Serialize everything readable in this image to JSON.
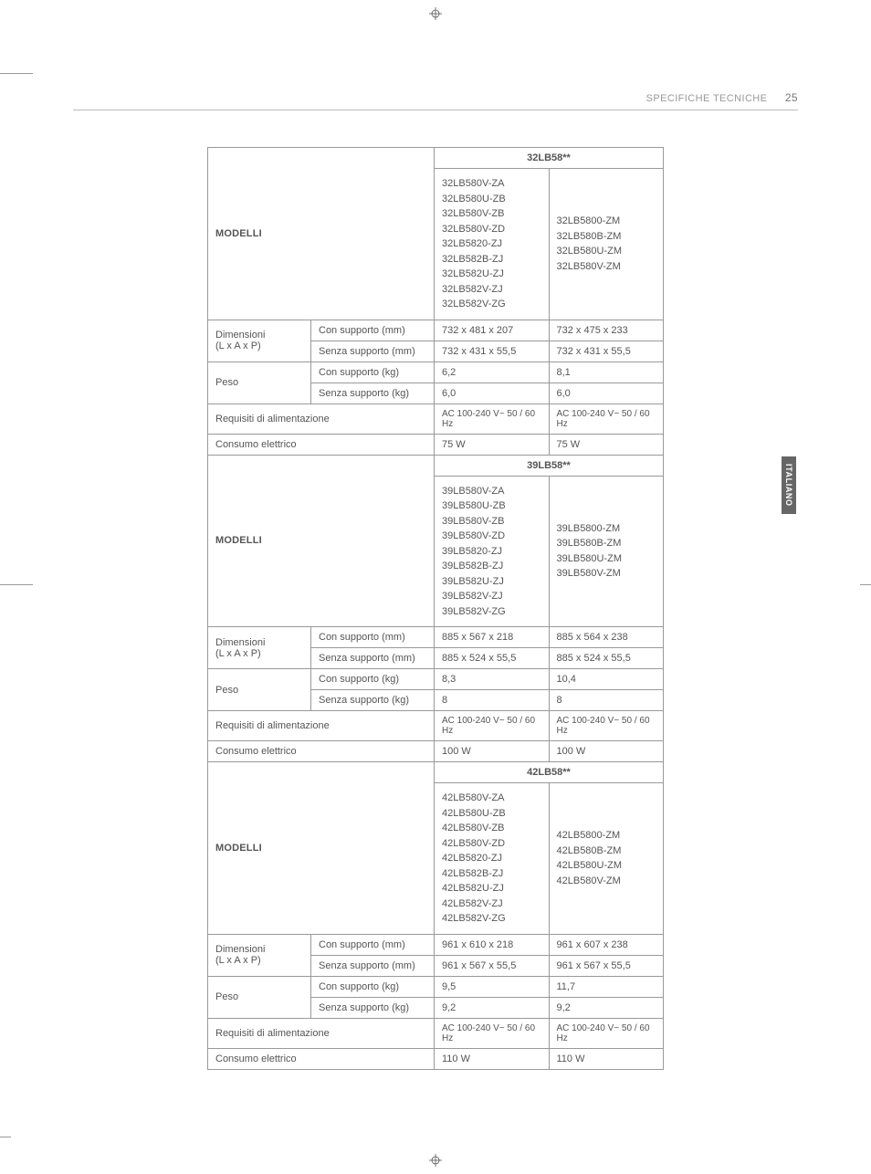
{
  "header": {
    "section": "SPECIFICHE TECNICHE",
    "page": "25"
  },
  "sideTab": "ITALIANO",
  "labels": {
    "modelli": "MODELLI",
    "dim": "Dimensioni",
    "dimUnit": "(L x A x P)",
    "peso": "Peso",
    "conSuppMm": "Con supporto (mm)",
    "senzaSuppMm": "Senza supporto (mm)",
    "conSuppKg": "Con supporto (kg)",
    "senzaSuppKg": "Senza supporto (kg)",
    "req": "Requisiti di alimentazione",
    "consumo": "Consumo elettrico"
  },
  "groups": [
    {
      "head": "32LB58**",
      "modelsA": "32LB580V-ZA\n32LB580U-ZB\n32LB580V-ZB\n32LB580V-ZD\n32LB5820-ZJ\n32LB582B-ZJ\n32LB582U-ZJ\n32LB582V-ZJ\n32LB582V-ZG",
      "modelsB": "32LB5800-ZM\n32LB580B-ZM\n32LB580U-ZM\n32LB580V-ZM",
      "dimCon": {
        "a": "732 x 481 x 207",
        "b": "732 x 475 x 233"
      },
      "dimSenza": {
        "a": "732 x 431 x 55,5",
        "b": "732 x 431 x 55,5"
      },
      "pesoCon": {
        "a": "6,2",
        "b": "8,1"
      },
      "pesoSenza": {
        "a": "6,0",
        "b": "6,0"
      },
      "req": {
        "a": "AC 100-240 V~ 50 / 60 Hz",
        "b": "AC 100-240 V~ 50 / 60 Hz"
      },
      "consumo": {
        "a": "75 W",
        "b": "75 W"
      }
    },
    {
      "head": "39LB58**",
      "modelsA": "39LB580V-ZA\n39LB580U-ZB\n39LB580V-ZB\n39LB580V-ZD\n39LB5820-ZJ\n39LB582B-ZJ\n39LB582U-ZJ\n39LB582V-ZJ\n39LB582V-ZG",
      "modelsB": "39LB5800-ZM\n39LB580B-ZM\n39LB580U-ZM\n39LB580V-ZM",
      "dimCon": {
        "a": "885 x 567 x 218",
        "b": "885 x 564 x 238"
      },
      "dimSenza": {
        "a": "885 x 524 x 55,5",
        "b": "885 x 524 x 55,5"
      },
      "pesoCon": {
        "a": "8,3",
        "b": "10,4"
      },
      "pesoSenza": {
        "a": "8",
        "b": "8"
      },
      "req": {
        "a": "AC 100-240 V~ 50 / 60 Hz",
        "b": "AC 100-240 V~ 50 / 60 Hz"
      },
      "consumo": {
        "a": "100 W",
        "b": "100 W"
      }
    },
    {
      "head": "42LB58**",
      "modelsA": "42LB580V-ZA\n42LB580U-ZB\n42LB580V-ZB\n42LB580V-ZD\n42LB5820-ZJ\n42LB582B-ZJ\n42LB582U-ZJ\n42LB582V-ZJ\n42LB582V-ZG",
      "modelsB": "42LB5800-ZM\n42LB580B-ZM\n42LB580U-ZM\n42LB580V-ZM",
      "dimCon": {
        "a": "961 x 610 x 218",
        "b": "961 x 607 x 238"
      },
      "dimSenza": {
        "a": "961 x 567 x 55,5",
        "b": "961 x 567 x 55,5"
      },
      "pesoCon": {
        "a": "9,5",
        "b": "11,7"
      },
      "pesoSenza": {
        "a": "9,2",
        "b": "9,2"
      },
      "req": {
        "a": "AC 100-240 V~ 50 / 60 Hz",
        "b": "AC 100-240 V~ 50 / 60 Hz"
      },
      "consumo": {
        "a": "110 W",
        "b": "110 W"
      }
    }
  ]
}
